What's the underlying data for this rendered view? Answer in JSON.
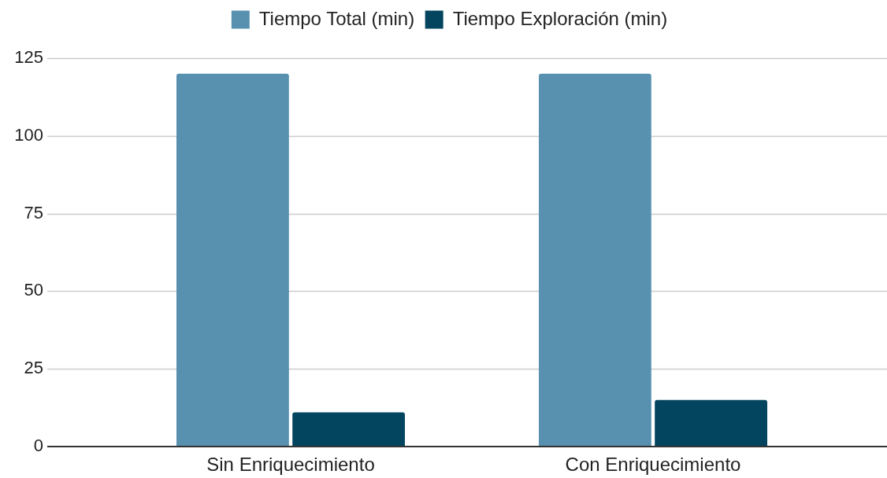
{
  "chart_data": {
    "type": "bar",
    "categories": [
      "Sin Enriquecimiento",
      "Con Enriquecimiento"
    ],
    "series": [
      {
        "name": "Tiempo Total (min)",
        "color": "#5891b0",
        "values": [
          120,
          120
        ]
      },
      {
        "name": "Tiempo Exploración (min)",
        "color": "#03455f",
        "values": [
          11,
          15
        ]
      }
    ],
    "ylim": [
      0,
      125
    ],
    "yticks": [
      0,
      25,
      50,
      75,
      100,
      125
    ],
    "grid": "y",
    "legend": "top"
  }
}
